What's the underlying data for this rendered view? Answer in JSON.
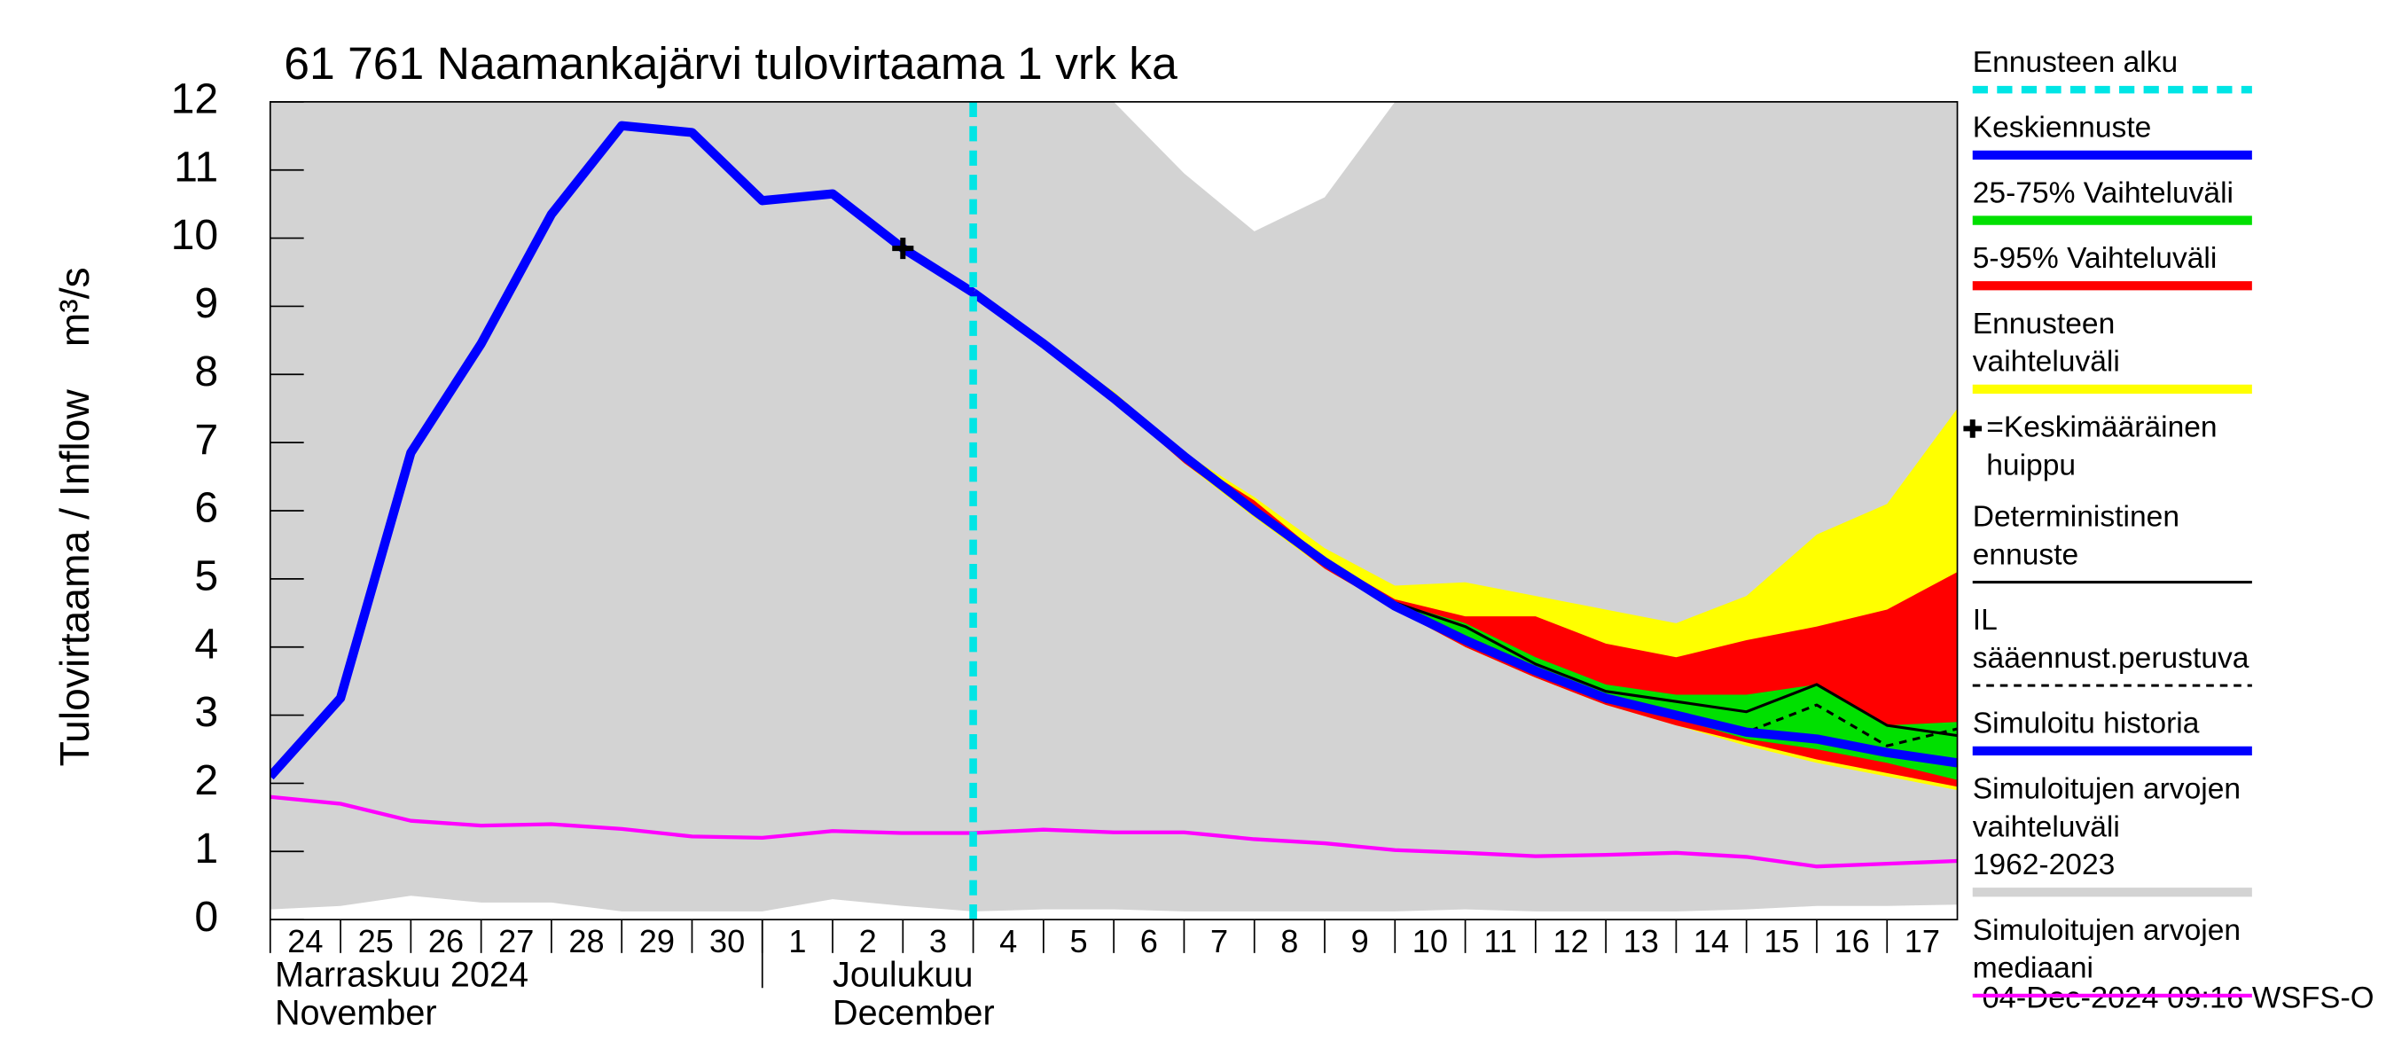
{
  "chart_data": {
    "type": "forecast-bands",
    "title": "61 761 Naamankajärvi tulovirtaama 1 vrk ka",
    "y_label": "Tulovirtaama / Inflow",
    "y_unit": "m³/s",
    "timestamp": "04-Dec-2024 09:16 WSFS-O",
    "ylim": [
      0,
      12
    ],
    "yticks": [
      0,
      1,
      2,
      3,
      4,
      5,
      6,
      7,
      8,
      9,
      10,
      11,
      12
    ],
    "xlim": [
      0,
      24
    ],
    "xticks": [
      {
        "value": 0,
        "label": "24"
      },
      {
        "value": 1,
        "label": "25"
      },
      {
        "value": 2,
        "label": "26"
      },
      {
        "value": 3,
        "label": "27"
      },
      {
        "value": 4,
        "label": "28"
      },
      {
        "value": 5,
        "label": "29"
      },
      {
        "value": 6,
        "label": "30"
      },
      {
        "value": 7,
        "label": "1"
      },
      {
        "value": 8,
        "label": "2"
      },
      {
        "value": 9,
        "label": "3"
      },
      {
        "value": 10,
        "label": "4"
      },
      {
        "value": 11,
        "label": "5"
      },
      {
        "value": 12,
        "label": "6"
      },
      {
        "value": 13,
        "label": "7"
      },
      {
        "value": 14,
        "label": "8"
      },
      {
        "value": 15,
        "label": "9"
      },
      {
        "value": 16,
        "label": "10"
      },
      {
        "value": 17,
        "label": "11"
      },
      {
        "value": 18,
        "label": "12"
      },
      {
        "value": 19,
        "label": "13"
      },
      {
        "value": 20,
        "label": "14"
      },
      {
        "value": 21,
        "label": "15"
      },
      {
        "value": 22,
        "label": "16"
      },
      {
        "value": 23,
        "label": "17"
      }
    ],
    "months": [
      {
        "x": 0,
        "fi": "Marraskuu 2024",
        "en": "November"
      },
      {
        "x": 7,
        "fi": "Joulukuu",
        "en": "December"
      }
    ],
    "x": [
      0,
      1,
      2,
      3,
      4,
      5,
      6,
      7,
      8,
      9,
      10,
      11,
      12,
      13,
      14,
      15,
      16,
      17,
      18,
      19,
      20,
      21,
      22,
      23,
      24
    ],
    "series": [
      {
        "name": "Ennusteen alku",
        "kind": "vline",
        "linestyle": "dashed",
        "linewidth": "thick",
        "color": "#00e5e5",
        "xpos": 10
      },
      {
        "name": "Keskiennuste",
        "kind": "line",
        "linestyle": "solid",
        "linewidth": "thick",
        "color": "#0000ff",
        "values": [
          null,
          null,
          null,
          null,
          null,
          null,
          null,
          null,
          null,
          null,
          9.2,
          8.45,
          7.65,
          6.8,
          6.0,
          5.25,
          4.6,
          4.1,
          3.65,
          3.25,
          3.0,
          2.75,
          2.65,
          2.45,
          2.3
        ]
      },
      {
        "name": "25-75% Vaihteluväli",
        "kind": "band",
        "linewidth": "thick",
        "color": "#00e000",
        "values": [
          null,
          null,
          null,
          null,
          null,
          null,
          null,
          null,
          null,
          null,
          9.2,
          8.45,
          7.65,
          6.8,
          6.0,
          5.25,
          4.65,
          4.35,
          3.85,
          3.45,
          3.3,
          3.3,
          3.45,
          2.85,
          2.9
        ],
        "lower": [
          null,
          null,
          null,
          null,
          null,
          null,
          null,
          null,
          null,
          null,
          9.2,
          8.4,
          7.6,
          6.75,
          5.95,
          5.2,
          4.55,
          4.05,
          3.6,
          3.2,
          2.95,
          2.65,
          2.5,
          2.3,
          2.05
        ]
      },
      {
        "name": "5-95% Vaihteluväli",
        "kind": "band",
        "linewidth": "thick",
        "color": "#ff0000",
        "values": [
          null,
          null,
          null,
          null,
          null,
          null,
          null,
          null,
          null,
          null,
          9.2,
          8.45,
          7.7,
          6.8,
          6.15,
          5.3,
          4.7,
          4.45,
          4.45,
          4.05,
          3.85,
          4.1,
          4.3,
          4.55,
          5.1
        ],
        "lower": [
          null,
          null,
          null,
          null,
          null,
          null,
          null,
          null,
          null,
          null,
          9.2,
          8.4,
          7.6,
          6.7,
          5.95,
          5.15,
          4.55,
          4.0,
          3.55,
          3.15,
          2.85,
          2.6,
          2.35,
          2.15,
          1.95
        ]
      },
      {
        "name": "Ennusteen vaihteluväli",
        "kind": "band",
        "linewidth": "thick",
        "color": "#ffff00",
        "values": [
          null,
          null,
          null,
          null,
          null,
          null,
          null,
          null,
          null,
          null,
          9.2,
          8.45,
          7.75,
          6.85,
          6.2,
          5.45,
          4.9,
          4.95,
          4.75,
          4.55,
          4.35,
          4.75,
          5.65,
          6.1,
          7.5
        ],
        "lower": [
          null,
          null,
          null,
          null,
          null,
          null,
          null,
          null,
          null,
          null,
          9.2,
          8.4,
          7.6,
          6.7,
          5.9,
          5.15,
          4.55,
          4.0,
          3.55,
          3.15,
          2.85,
          2.55,
          2.3,
          2.1,
          1.9
        ]
      },
      {
        "name": "=Keskimääräinen huippu",
        "kind": "marker",
        "color": "#000000",
        "xpos": 9,
        "value": 9.85
      },
      {
        "name": "Deterministinen ennuste",
        "kind": "line",
        "linestyle": "solid",
        "linewidth": "thin",
        "color": "#000000",
        "values": [
          null,
          null,
          null,
          null,
          null,
          null,
          null,
          null,
          null,
          null,
          9.2,
          8.45,
          7.65,
          6.8,
          6.0,
          5.25,
          4.65,
          4.3,
          3.75,
          3.35,
          3.2,
          3.05,
          3.45,
          2.85,
          2.7
        ]
      },
      {
        "name": "IL sääennust.perustuva",
        "kind": "line",
        "linestyle": "dashed",
        "linewidth": "thin",
        "color": "#000000",
        "values": [
          null,
          null,
          null,
          null,
          null,
          null,
          null,
          null,
          null,
          null,
          9.2,
          8.45,
          7.65,
          6.8,
          6.0,
          5.25,
          4.6,
          4.15,
          3.7,
          3.2,
          3.0,
          2.75,
          3.15,
          2.55,
          2.8
        ]
      },
      {
        "name": "Simuloitu historia",
        "kind": "line",
        "linestyle": "solid",
        "linewidth": "thick",
        "color": "#0000ff",
        "values": [
          2.1,
          3.25,
          6.85,
          8.45,
          10.35,
          11.65,
          11.55,
          10.55,
          10.65,
          9.85,
          9.2,
          null,
          null,
          null,
          null,
          null,
          null,
          null,
          null,
          null,
          null,
          null,
          null,
          null,
          null
        ]
      },
      {
        "name": "Simuloitujen arvojen vaihteluväli 1962-2023",
        "kind": "band",
        "linewidth": "thick",
        "color": "#d3d3d3",
        "values": [
          12,
          12,
          12,
          12,
          12,
          12,
          12,
          12,
          12,
          12,
          12,
          12,
          12,
          10.95,
          10.1,
          10.6,
          12,
          12,
          12,
          12,
          12,
          12,
          12,
          12,
          12
        ],
        "lower": [
          0.15,
          0.2,
          0.35,
          0.25,
          0.25,
          0.12,
          0.12,
          0.12,
          0.3,
          0.2,
          0.12,
          0.15,
          0.15,
          0.12,
          0.12,
          0.12,
          0.12,
          0.15,
          0.12,
          0.12,
          0.12,
          0.15,
          0.2,
          0.2,
          0.22
        ]
      },
      {
        "name": "Simuloitujen arvojen mediaani",
        "kind": "line",
        "linestyle": "solid",
        "linewidth": "medium",
        "color": "#ff00ff",
        "values": [
          1.8,
          1.7,
          1.45,
          1.38,
          1.4,
          1.33,
          1.22,
          1.2,
          1.3,
          1.27,
          1.27,
          1.32,
          1.28,
          1.28,
          1.18,
          1.12,
          1.02,
          0.98,
          0.93,
          0.95,
          0.98,
          0.92,
          0.78,
          0.82,
          0.86
        ]
      }
    ]
  }
}
